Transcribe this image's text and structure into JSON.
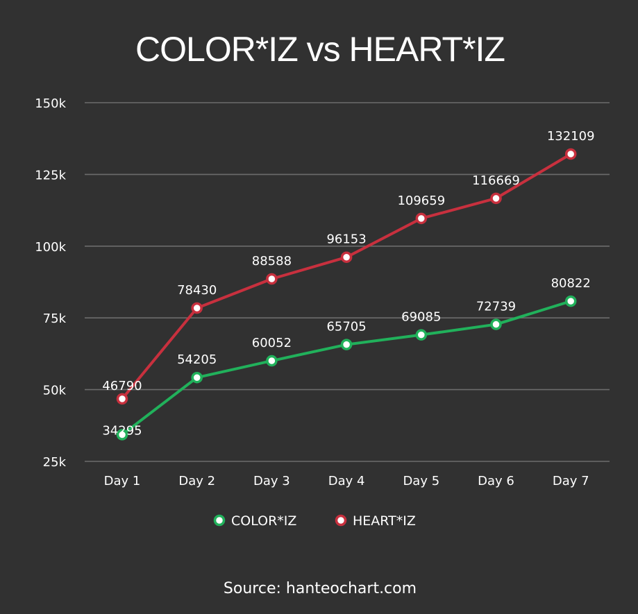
{
  "source_text": "Source: hanteochart.com",
  "colors": {
    "background": "#313131",
    "grid": "#6c6c6c",
    "text": "#ffffff",
    "COLOR*IZ": "#21b15b",
    "HEART*IZ": "#c8303e"
  },
  "chart_data": {
    "type": "line",
    "title": "COLOR*IZ vs HEART*IZ",
    "xlabel": "",
    "ylabel": "",
    "categories": [
      "Day 1",
      "Day 2",
      "Day 3",
      "Day 4",
      "Day 5",
      "Day 6",
      "Day 7"
    ],
    "ylim": [
      25000,
      150000
    ],
    "yticks": [
      25000,
      50000,
      75000,
      100000,
      125000,
      150000
    ],
    "ytick_labels": [
      "25k",
      "50k",
      "75k",
      "100k",
      "125k",
      "150k"
    ],
    "grid": true,
    "legend_position": "bottom",
    "series": [
      {
        "name": "COLOR*IZ",
        "color": "#21b15b",
        "values": [
          34295,
          54205,
          60052,
          65705,
          69085,
          72739,
          80822
        ]
      },
      {
        "name": "HEART*IZ",
        "color": "#c8303e",
        "values": [
          46790,
          78430,
          88588,
          96153,
          109659,
          116669,
          132109
        ]
      }
    ]
  }
}
